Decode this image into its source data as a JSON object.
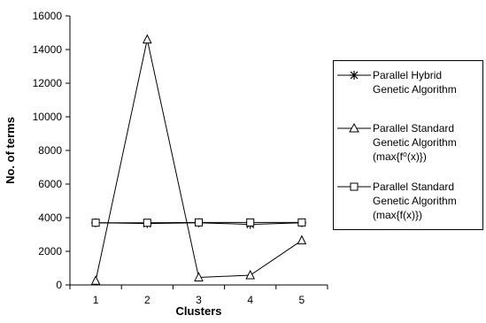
{
  "chart_data": {
    "type": "line",
    "xlabel": "Clusters",
    "ylabel": "No. of terms",
    "x": [
      1,
      2,
      3,
      4,
      5
    ],
    "ylim": [
      0,
      16000
    ],
    "yticks": [
      0,
      2000,
      4000,
      6000,
      8000,
      10000,
      12000,
      14000,
      16000
    ],
    "xlim": [
      0.5,
      5.5
    ],
    "grid": false,
    "legend": "right",
    "series": [
      {
        "name": "Parallel Hybrid\nGenetic Algorithm",
        "marker": "star",
        "values": [
          3700,
          3650,
          3700,
          3600,
          3700
        ]
      },
      {
        "name": "Parallel Standard\nGenetic Algorithm\n(max{f⁰(x)})",
        "marker": "triangle",
        "values": [
          250,
          14600,
          450,
          580,
          2650
        ]
      },
      {
        "name": "Parallel Standard\nGenetic Algorithm\n(max{f(x)})",
        "marker": "square",
        "values": [
          3700,
          3700,
          3720,
          3720,
          3720
        ]
      }
    ]
  }
}
